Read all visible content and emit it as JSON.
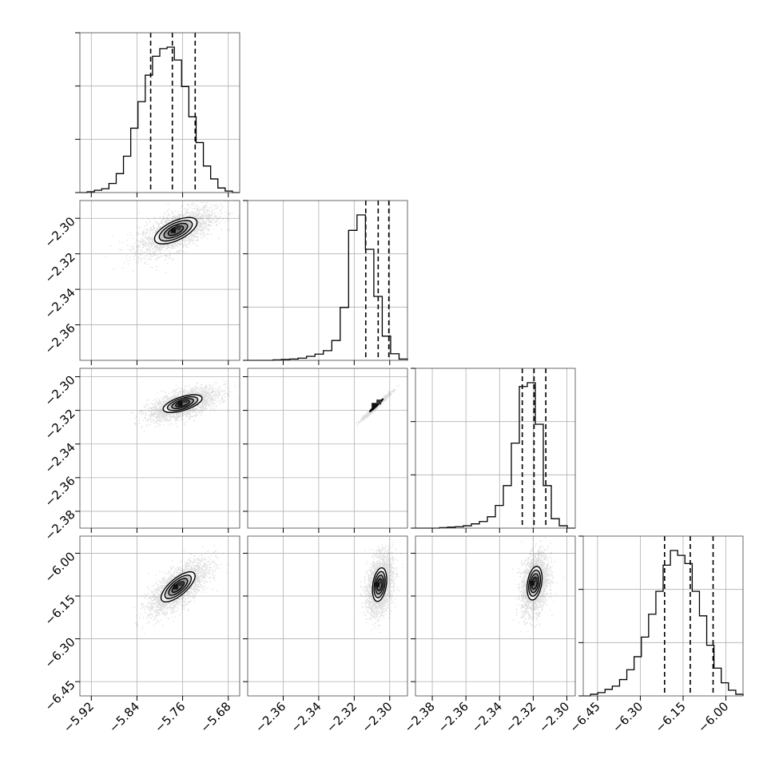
{
  "figure": {
    "panels": [
      {
        "id": "h0",
        "kind": "hist",
        "row": 0,
        "col": 0
      },
      {
        "id": "s10",
        "kind": "scatter",
        "row": 1,
        "col": 0
      },
      {
        "id": "h1",
        "kind": "hist",
        "row": 1,
        "col": 1
      },
      {
        "id": "s20",
        "kind": "scatter",
        "row": 2,
        "col": 0
      },
      {
        "id": "s21",
        "kind": "scatter",
        "row": 2,
        "col": 1
      },
      {
        "id": "h2",
        "kind": "hist",
        "row": 2,
        "col": 2
      },
      {
        "id": "s30",
        "kind": "scatter",
        "row": 3,
        "col": 0
      },
      {
        "id": "s31",
        "kind": "scatter",
        "row": 3,
        "col": 1
      },
      {
        "id": "s32",
        "kind": "scatter",
        "row": 3,
        "col": 2
      },
      {
        "id": "h3",
        "kind": "hist",
        "row": 3,
        "col": 3
      }
    ]
  },
  "chart_data": {
    "type": "corner",
    "grid": true,
    "parameters": [
      {
        "range": [
          -5.94,
          -5.66
        ],
        "ticks": [
          -5.92,
          -5.84,
          -5.76,
          -5.68
        ],
        "tick_labels": [
          "−5.92",
          "−5.84",
          "−5.76",
          "−5.68"
        ]
      },
      {
        "range": [
          -2.38,
          -2.29
        ],
        "ticks": [
          -2.36,
          -2.34,
          -2.32,
          -2.3
        ],
        "tick_labels": [
          "−2.36",
          "−2.34",
          "−2.32",
          "−2.30"
        ]
      },
      {
        "range": [
          -2.39,
          -2.295
        ],
        "ticks": [
          -2.38,
          -2.36,
          -2.34,
          -2.32,
          -2.3
        ],
        "tick_labels": [
          "−2.38",
          "−2.36",
          "−2.34",
          "−2.32",
          "−2.30"
        ]
      },
      {
        "range": [
          -6.5,
          -5.94
        ],
        "ticks": [
          -6.45,
          -6.3,
          -6.15,
          -6.0
        ],
        "tick_labels": [
          "−6.45",
          "−6.30",
          "−6.15",
          "−6.00"
        ]
      }
    ],
    "hist_quantiles": [
      [
        -5.816,
        -5.778,
        -5.738
      ],
      [
        -2.3135,
        -2.3065,
        -2.3005
      ],
      [
        -2.3265,
        -2.3195,
        -2.3125
      ],
      [
        -6.215,
        -6.125,
        -6.045
      ]
    ],
    "hist_counts": [
      [
        0,
        1,
        3,
        5,
        12,
        25,
        48,
        85,
        120,
        155,
        180,
        190,
        192,
        175,
        140,
        100,
        66,
        35,
        18,
        6,
        2,
        0
      ],
      [
        0,
        0,
        0,
        1,
        2,
        3,
        5,
        9,
        14,
        22,
        45,
        120,
        295,
        330,
        252,
        145,
        55,
        15,
        3
      ],
      [
        0,
        0,
        0,
        1,
        2,
        3,
        5,
        9,
        14,
        24,
        48,
        90,
        180,
        300,
        308,
        220,
        90,
        20,
        5,
        0
      ],
      [
        0,
        2,
        4,
        8,
        12,
        20,
        32,
        48,
        72,
        100,
        128,
        160,
        178,
        172,
        162,
        128,
        98,
        62,
        34,
        16,
        7,
        2
      ]
    ],
    "contour_ellipses": [
      {
        "row": 1,
        "col": 0,
        "cx": -5.772,
        "cy": -2.307,
        "ax": 0.06,
        "ay": 0.012,
        "corr": 0.62
      },
      {
        "row": 2,
        "col": 0,
        "cx": -5.76,
        "cy": -2.316,
        "ax": 0.055,
        "ay": 0.0085,
        "corr": 0.6
      },
      {
        "row": 2,
        "col": 1,
        "cx": -2.3075,
        "cy": -2.317,
        "ax": 0.0062,
        "ay": 0.0062,
        "corr": 0.985
      },
      {
        "row": 3,
        "col": 0,
        "cx": -5.768,
        "cy": -6.118,
        "ax": 0.048,
        "ay": 0.085,
        "corr": 0.72
      },
      {
        "row": 3,
        "col": 1,
        "cx": -2.3057,
        "cy": -6.11,
        "ax": 0.0065,
        "ay": 0.095,
        "corr": 0.3
      },
      {
        "row": 3,
        "col": 2,
        "cx": -2.3192,
        "cy": -6.105,
        "ax": 0.0072,
        "ay": 0.095,
        "corr": 0.3
      }
    ]
  }
}
